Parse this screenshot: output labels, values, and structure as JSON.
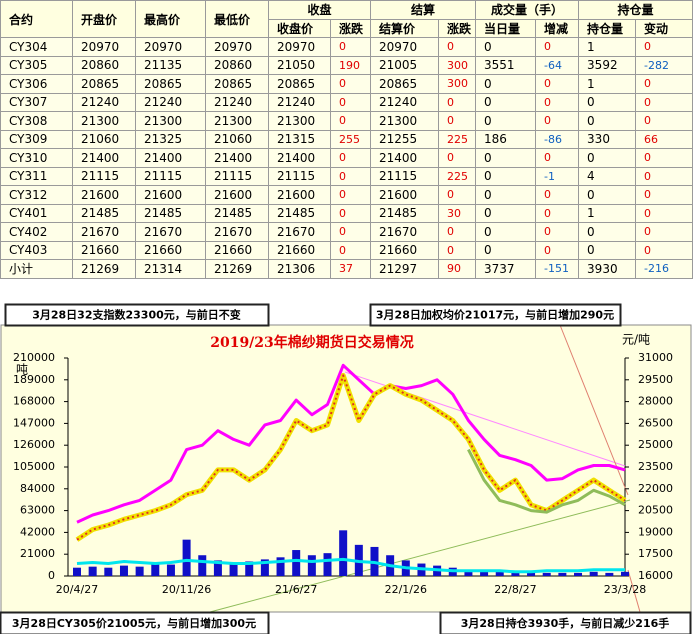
{
  "table": {
    "header_top": [
      "合约",
      "开盘价",
      "最高价",
      "最低价",
      "收盘",
      "结算",
      "成交量（手）",
      "持仓量"
    ],
    "header_sub": [
      "收盘价",
      "涨跌",
      "结算价",
      "涨跌",
      "当日量",
      "增减",
      "持仓量",
      "变动"
    ],
    "rows": [
      [
        "CY304",
        20970,
        20970,
        20970,
        20970,
        0,
        20970,
        0,
        0,
        0,
        1,
        0
      ],
      [
        "CY305",
        20860,
        21135,
        20860,
        21050,
        190,
        21005,
        300,
        3551,
        -64,
        3592,
        -282
      ],
      [
        "CY306",
        20865,
        20865,
        20865,
        20865,
        0,
        20865,
        300,
        0,
        0,
        1,
        0
      ],
      [
        "CY307",
        21240,
        21240,
        21240,
        21240,
        0,
        21240,
        0,
        0,
        0,
        0,
        0
      ],
      [
        "CY308",
        21300,
        21300,
        21300,
        21300,
        0,
        21300,
        0,
        0,
        0,
        0,
        0
      ],
      [
        "CY309",
        21060,
        21325,
        21060,
        21315,
        255,
        21255,
        225,
        186,
        -86,
        330,
        66
      ],
      [
        "CY310",
        21400,
        21400,
        21400,
        21400,
        0,
        21400,
        0,
        0,
        0,
        0,
        0
      ],
      [
        "CY311",
        21115,
        21115,
        21115,
        21115,
        0,
        21115,
        225,
        0,
        -1,
        4,
        0
      ],
      [
        "CY312",
        21600,
        21600,
        21600,
        21600,
        0,
        21600,
        0,
        0,
        0,
        0,
        0
      ],
      [
        "CY401",
        21485,
        21485,
        21485,
        21485,
        0,
        21485,
        30,
        0,
        0,
        1,
        0
      ],
      [
        "CY402",
        21670,
        21670,
        21670,
        21670,
        0,
        21670,
        0,
        0,
        0,
        0,
        0
      ],
      [
        "CY403",
        21660,
        21660,
        21660,
        21660,
        0,
        21660,
        0,
        0,
        0,
        0,
        0
      ],
      [
        "小计",
        21269,
        21314,
        21269,
        21306,
        37,
        21297,
        90,
        3737,
        -151,
        3930,
        -216
      ]
    ]
  },
  "chart_data": {
    "type": "combo",
    "title": "2019/23年棉纱期货日交易情况",
    "ylabel": "吨",
    "y2label": "元/吨",
    "annotations": [
      "3月28日32支指数23300元，与前日不变",
      "3月28日加权均价21017元，与前日增加290元",
      "3月28日CY305价21005元，与前日增加300元",
      "3月28日持仓3930手，与前日减少216手"
    ],
    "categories": [
      "20/4/27",
      null,
      null,
      null,
      null,
      null,
      null,
      "20/11/26",
      null,
      null,
      null,
      null,
      null,
      null,
      "21/6/27",
      null,
      null,
      null,
      null,
      null,
      null,
      "22/1/26",
      null,
      null,
      null,
      null,
      null,
      null,
      "22/8/27",
      null,
      null,
      null,
      null,
      null,
      null,
      "23/3/28"
    ],
    "ylim": [
      0,
      210000
    ],
    "yticks": [
      0,
      21000,
      42000,
      63000,
      84000,
      105000,
      126000,
      147000,
      168000,
      189000,
      210000
    ],
    "y2lim": [
      16000,
      31000
    ],
    "y2ticks": [
      16000,
      17500,
      19000,
      20500,
      22000,
      23500,
      25000,
      26500,
      28000,
      29500,
      31000
    ],
    "series": [
      {
        "type": "bar",
        "color": "#1010c8",
        "values": [
          8000,
          9000,
          8000,
          10000,
          9000,
          12000,
          11000,
          35000,
          20000,
          15000,
          12000,
          14000,
          16000,
          18000,
          25000,
          20000,
          22000,
          44000,
          30000,
          28000,
          20000,
          15000,
          12000,
          10000,
          8000,
          6000,
          5000,
          4000,
          4000,
          3000,
          3000,
          3000,
          3000,
          4000,
          3000,
          4000
        ]
      },
      {
        "type": "line",
        "color": "#00e5ee",
        "values": [
          12000,
          13000,
          12000,
          14000,
          13000,
          12000,
          13000,
          15000,
          14000,
          13000,
          12000,
          12000,
          13000,
          14000,
          15000,
          14000,
          15000,
          16000,
          14000,
          13000,
          10000,
          8000,
          7000,
          6000,
          5000,
          5000,
          5000,
          5000,
          4000,
          4000,
          5000,
          5000,
          5000,
          6000,
          6000,
          6000
        ]
      },
      {
        "type": "line",
        "axis": "y2",
        "color": "#ff00ff",
        "values": [
          19700,
          20200,
          20500,
          20900,
          21200,
          21900,
          22600,
          24700,
          25000,
          26000,
          25400,
          25000,
          26400,
          26700,
          28100,
          27100,
          27800,
          30500,
          29500,
          28500,
          29100,
          28900,
          29100,
          29500,
          28500,
          26700,
          25400,
          24300,
          24000,
          23600,
          22600,
          22700,
          23300,
          23600,
          23600,
          23300
        ]
      },
      {
        "type": "line",
        "axis": "y2",
        "color": "#f0e000",
        "dot_color": "#e03020",
        "values": [
          18500,
          19200,
          19500,
          19900,
          20200,
          20500,
          20900,
          21600,
          21900,
          23300,
          23300,
          22600,
          23300,
          24700,
          26700,
          26000,
          26400,
          29800,
          26700,
          28500,
          29100,
          28500,
          28100,
          27400,
          26700,
          25400,
          23300,
          21900,
          22600,
          20900,
          20500,
          21200,
          21900,
          22600,
          21900,
          21200
        ]
      },
      {
        "type": "line",
        "axis": "y2",
        "color": "#8fbc5a",
        "values": [
          null,
          null,
          null,
          null,
          null,
          null,
          null,
          null,
          null,
          null,
          null,
          null,
          null,
          null,
          null,
          null,
          null,
          null,
          null,
          null,
          null,
          null,
          null,
          null,
          null,
          24700,
          22600,
          21200,
          20900,
          20500,
          20400,
          20900,
          21200,
          21900,
          21500,
          20900
        ]
      }
    ]
  }
}
